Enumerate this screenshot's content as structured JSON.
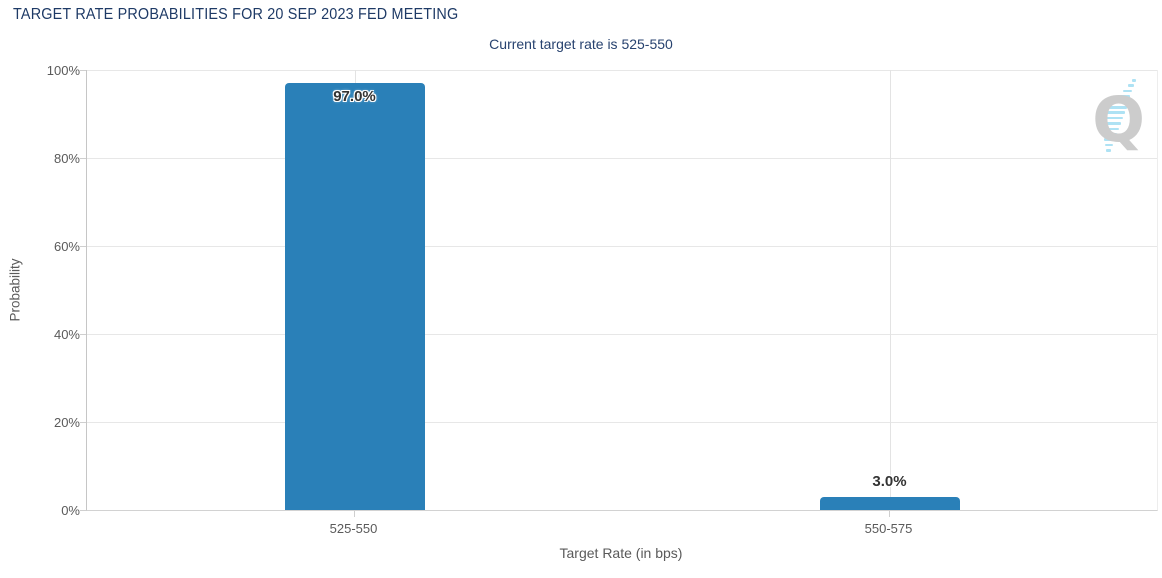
{
  "watermark": {
    "letter": "Q",
    "name": "quikstrike-logo"
  },
  "colors": {
    "title": "#1e3a66",
    "subtitle": "#27426f",
    "bar": "#2a80b8",
    "watermark_q": "#c7c7c7",
    "watermark_swoosh": "#a6dff3"
  },
  "chart_data": {
    "type": "bar",
    "title": "TARGET RATE PROBABILITIES FOR 20 SEP 2023 FED MEETING",
    "subtitle": "Current target rate is 525-550",
    "xlabel": "Target Rate (in bps)",
    "ylabel": "Probability",
    "categories": [
      "525-550",
      "550-575"
    ],
    "values": [
      97.0,
      3.0
    ],
    "value_labels": [
      "97.0%",
      "3.0%"
    ],
    "ylim": [
      0,
      100
    ],
    "yticks": [
      0,
      20,
      40,
      60,
      80,
      100
    ],
    "ytick_labels": [
      "0%",
      "20%",
      "40%",
      "60%",
      "80%",
      "100%"
    ],
    "grid": true,
    "legend": "none",
    "bar_color": "#2a80b8"
  }
}
